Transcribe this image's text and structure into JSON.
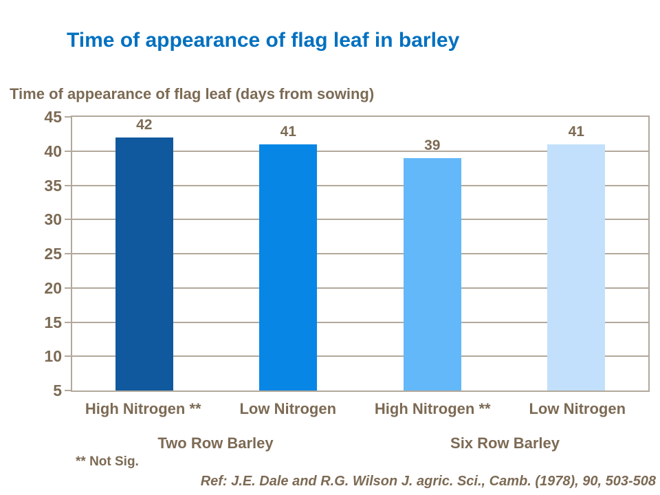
{
  "slide_title": "Time of appearance of flag leaf in barley",
  "footnote": "** Not Sig.",
  "reference": "Ref: J.E. Dale and R.G. Wilson J. agric. Sci., Camb. (1978), 90, 503-508",
  "colors": {
    "title_blue": "#0070C0",
    "label_brown": "#7C6A54",
    "grid_gray": "#B2A89B",
    "background": "#FFFFFF"
  },
  "chart_data": {
    "type": "bar",
    "title": "Time of appearance of flag leaf in barley",
    "axis_title": "Time of appearance of flag leaf (days from sowing)",
    "categories": [
      "High Nitrogen **",
      "Low Nitrogen",
      "High Nitrogen **",
      "Low Nitrogen"
    ],
    "values": [
      42,
      41,
      39,
      41
    ],
    "bar_colors": [
      "#10599F",
      "#0786E5",
      "#63B8FA",
      "#C2E0FB"
    ],
    "value_labels": [
      "42",
      "41",
      "39",
      "41"
    ],
    "groups": [
      {
        "label": "Two Row Barley",
        "categories": [
          "High Nitrogen **",
          "Low Nitrogen"
        ]
      },
      {
        "label": "Six Row Barley",
        "categories": [
          "High Nitrogen **",
          "Low Nitrogen"
        ]
      }
    ],
    "y_ticks": [
      45,
      40,
      35,
      30,
      25,
      20,
      15,
      10,
      5
    ],
    "ylim": [
      5,
      45
    ],
    "xlabel": "",
    "ylabel": "Time of appearance of flag leaf (days from sowing)",
    "grid": true,
    "legend_position": "none"
  }
}
